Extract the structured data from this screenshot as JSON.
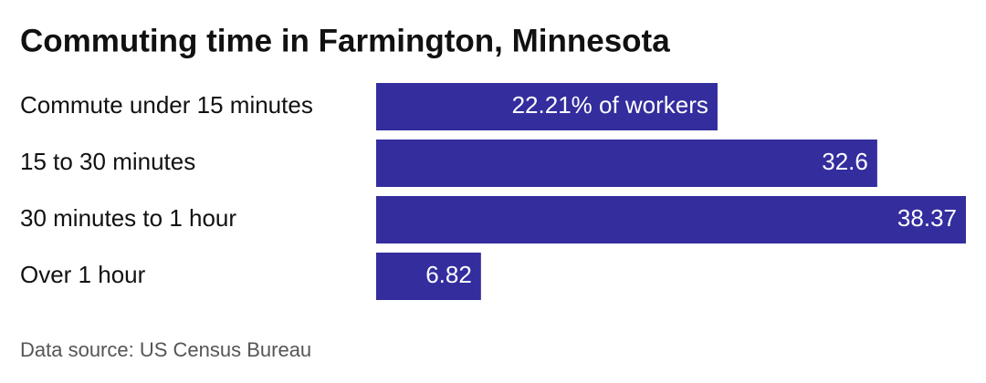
{
  "chart_data": {
    "type": "bar",
    "orientation": "horizontal",
    "title": "Commuting time in Farmington, Minnesota",
    "categories": [
      "Commute under 15 minutes",
      "15 to 30 minutes",
      "30 minutes to 1 hour",
      "Over 1 hour"
    ],
    "values": [
      22.21,
      32.6,
      38.37,
      6.82
    ],
    "value_labels": [
      "22.21% of workers",
      "32.6",
      "38.37",
      "6.82"
    ],
    "color": "#332d9e",
    "source": "Data source: US Census Bureau"
  }
}
